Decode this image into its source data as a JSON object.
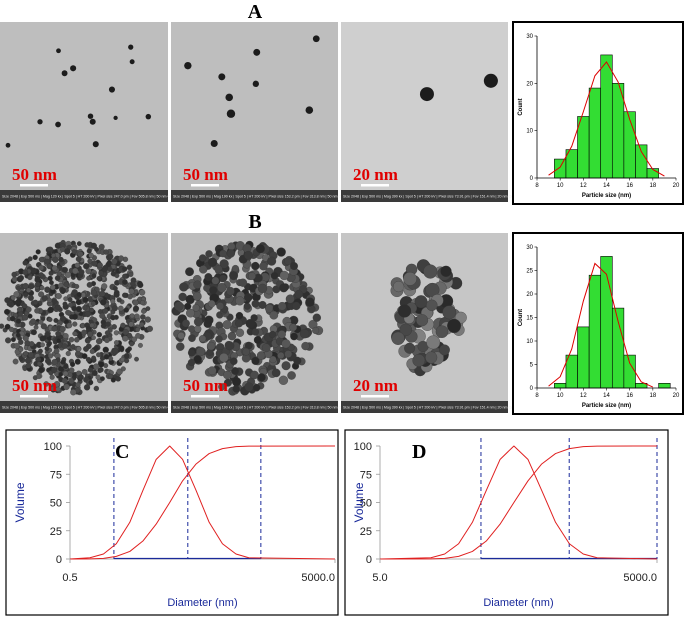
{
  "panel_labels": [
    "A",
    "B",
    "C",
    "D"
  ],
  "tem_images": [
    {
      "scale": "50 nm",
      "info": "Size 2048 | Exp 500 ms | Mag 120 kx | Spot 5 | HT 200 kV | Pixel size 247.0 pm | Fov 505.8 nm | 50 nm Ceta"
    },
    {
      "scale": "50 nm",
      "info": "Size 2048 | Exp 500 ms | Mag 190 kx | Spot 5 | HT 200 kV | Pixel size 153.2 pm | Fov 313.8 nm | 50 nm Ceta"
    },
    {
      "scale": "20 nm",
      "info": "Size 2048 | Exp 500 ms | Mag 390 kx | Spot 5 | HT 200 kV | Pixel size 73.91 pm | Fov 151.4 nm | 20 nm Ceta"
    },
    {
      "scale": "50 nm",
      "info": "Size 2048 | Exp 500 ms | Mag 120 kx | Spot 5 | HT 200 kV | Pixel size 247.0 pm | Fov 505.8 nm | 50 nm Ceta"
    },
    {
      "scale": "50 nm",
      "info": "Size 2048 | Exp 500 ms | Mag 190 kx | Spot 5 | HT 200 kV | Pixel size 153.2 pm | Fov 313.8 nm | 50 nm Ceta"
    },
    {
      "scale": "20 nm",
      "info": "Size 2048 | Exp 500 ms | Mag 390 kx | Spot 5 | HT 200 kV | Pixel size 73.91 pm | Fov 151.4 nm | 20 nm Ceta"
    }
  ],
  "chart_data": [
    {
      "type": "histogram",
      "x_label": "Particle size (nm)",
      "y_label": "Count",
      "bins": [
        9.5,
        10.5,
        11.5,
        12.5,
        13.5,
        14.5,
        15.5,
        16.5,
        17.5,
        18.5
      ],
      "counts": [
        4,
        6,
        13,
        19,
        26,
        20,
        14,
        7,
        2
      ],
      "color": "#33dd33",
      "xlim": [
        8,
        20
      ],
      "xticks": [
        8,
        10,
        12,
        14,
        16,
        18,
        20
      ],
      "ylim": [
        0,
        30
      ],
      "yticks": [
        0,
        10,
        20,
        30
      ],
      "fit_line": {
        "color": "#dd0000",
        "x": [
          9,
          10,
          11,
          12,
          13,
          14,
          15,
          16,
          17,
          18,
          19
        ],
        "values": [
          0.6,
          2.3,
          6.7,
          14.0,
          21.6,
          24.5,
          20.3,
          12.4,
          5.6,
          1.8,
          0.4
        ]
      }
    },
    {
      "type": "histogram",
      "x_label": "Particle size (nm)",
      "y_label": "Count",
      "bins": [
        9.5,
        10.5,
        11.5,
        12.5,
        13.5,
        14.5,
        15.5,
        16.5,
        17.5,
        18.5,
        19.5
      ],
      "counts": [
        1,
        7,
        13,
        24,
        28,
        17,
        7,
        1,
        0,
        1
      ],
      "color": "#33dd33",
      "xlim": [
        8,
        20
      ],
      "xticks": [
        8,
        10,
        12,
        14,
        16,
        18,
        20
      ],
      "ylim": [
        0,
        30
      ],
      "yticks": [
        0,
        5,
        10,
        15,
        20,
        25,
        30
      ],
      "fit_line": {
        "color": "#dd0000",
        "x": [
          9,
          10,
          11,
          12,
          13,
          14,
          15,
          16,
          17,
          18
        ],
        "values": [
          0.4,
          2.4,
          8.3,
          18.5,
          26.5,
          24.2,
          14.2,
          5.3,
          1.3,
          0.2
        ]
      }
    },
    {
      "type": "line",
      "x_label": "Diameter (nm)",
      "y_label": "Volume",
      "xscale": "log",
      "xlim": [
        0.5,
        5000
      ],
      "xticks": [
        0.5,
        {
          "value": 5000,
          "label": "5000.0"
        }
      ],
      "ylim": [
        0,
        100
      ],
      "yticks": [
        0,
        25,
        50,
        75,
        100
      ],
      "x": [
        0.5,
        1,
        1.6,
        2.5,
        4,
        6.3,
        10,
        16,
        25,
        40,
        63,
        100,
        160,
        250,
        5000
      ],
      "series": [
        {
          "color": "#e02020",
          "values": [
            0,
            1.1,
            4.4,
            13.5,
            32.5,
            60.7,
            88.2,
            100,
            88.2,
            60.7,
            32.5,
            13.5,
            4.4,
            1.1,
            0
          ]
        },
        {
          "color": "#e02020",
          "values": [
            0,
            0.1,
            0.6,
            2.3,
            6.7,
            15.9,
            30.9,
            50,
            69.1,
            84.1,
            93.3,
            97.7,
            99.4,
            99.9,
            100
          ]
        }
      ],
      "markers": [
        2.3,
        30,
        380
      ],
      "marker_color": "#1a2a9a"
    },
    {
      "type": "line",
      "x_label": "Diameter (nm)",
      "y_label": "Volume",
      "xscale": "log",
      "xlim": [
        5,
        5000
      ],
      "xticks": [
        {
          "value": 5,
          "label": "5.0"
        },
        {
          "value": 5000,
          "label": "5000.0"
        }
      ],
      "ylim": [
        0,
        100
      ],
      "yticks": [
        0,
        25,
        50,
        75,
        100
      ],
      "x": [
        5,
        17.8,
        25.1,
        35.5,
        50.1,
        70.8,
        100,
        141,
        200,
        282,
        398,
        562,
        794,
        1122,
        5000
      ],
      "series": [
        {
          "color": "#e02020",
          "values": [
            0,
            1.1,
            4.4,
            13.5,
            32.5,
            60.7,
            88.2,
            100,
            88.2,
            60.7,
            32.5,
            13.5,
            4.4,
            1.1,
            0
          ]
        },
        {
          "color": "#e02020",
          "values": [
            0,
            0.1,
            0.6,
            2.3,
            6.7,
            15.9,
            30.9,
            50,
            69.1,
            84.1,
            93.3,
            97.7,
            99.4,
            99.9,
            100
          ]
        }
      ],
      "markers": [
        62,
        560,
        5000
      ],
      "marker_color": "#1a2a9a"
    }
  ]
}
